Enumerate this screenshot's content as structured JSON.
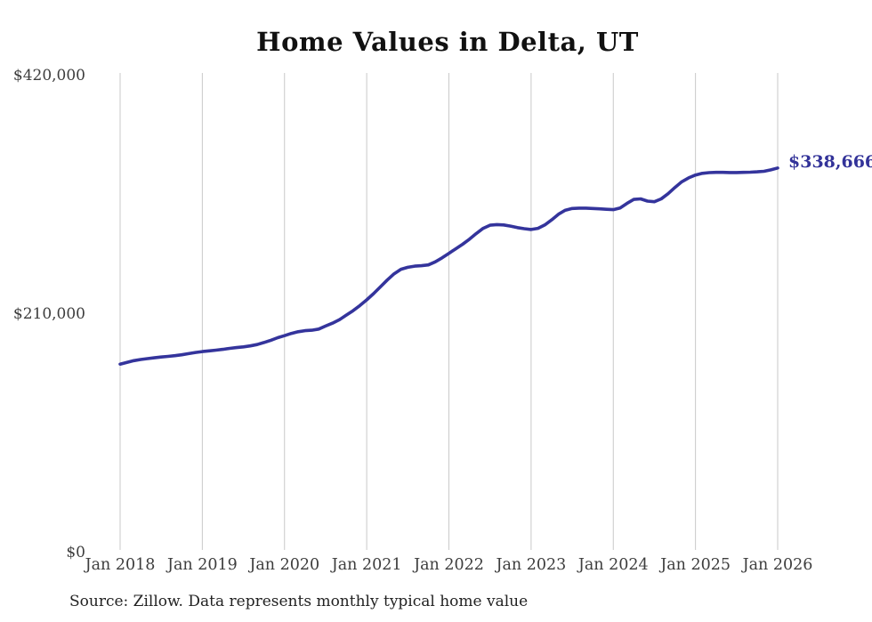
{
  "title": "Home Values in Delta, UT",
  "end_label": "$338,666",
  "source_note": "Source: Zillow. Data represents monthly typical home value",
  "colors": {
    "line": "#34349c",
    "grid": "#c9c9c9",
    "axis_text": "#3d3d3d",
    "title_text": "#111111",
    "end_label_text": "#333399",
    "background": "#ffffff"
  },
  "y_axis": {
    "tick_labels": [
      "$0",
      "$210,000",
      "$420,000"
    ],
    "tick_values": [
      0,
      210000,
      420000
    ]
  },
  "x_axis": {
    "tick_labels": [
      "Jan 2018",
      "Jan 2019",
      "Jan 2020",
      "Jan 2021",
      "Jan 2022",
      "Jan 2023",
      "Jan 2024",
      "Jan 2025",
      "Jan 2026"
    ]
  },
  "chart_data": {
    "type": "line",
    "title": "Home Values in Delta, UT",
    "xlabel": "",
    "ylabel": "",
    "x_start": "2018-01",
    "x_end": "2026-01",
    "frequency": "monthly",
    "ylim": [
      0,
      420000
    ],
    "y_tick_values": [
      0,
      210000,
      420000
    ],
    "y_tick_labels": [
      "$0",
      "$210,000",
      "$420,000"
    ],
    "x_tick_labels": [
      "Jan 2018",
      "Jan 2019",
      "Jan 2020",
      "Jan 2021",
      "Jan 2022",
      "Jan 2023",
      "Jan 2024",
      "Jan 2025",
      "Jan 2026"
    ],
    "grid": "vertical-only",
    "legend": "none",
    "end_annotation": "$338,666",
    "last_value": 338666,
    "series": [
      {
        "name": "Monthly typical home value",
        "color": "#34349c",
        "values": [
          166000,
          167500,
          169000,
          170000,
          170800,
          171500,
          172200,
          172800,
          173400,
          174200,
          175200,
          176200,
          177000,
          177600,
          178300,
          179000,
          179800,
          180500,
          181200,
          182000,
          183200,
          185000,
          187000,
          189200,
          191000,
          193000,
          194500,
          195400,
          195800,
          196800,
          199500,
          202000,
          205000,
          209000,
          213000,
          217500,
          222500,
          228000,
          234000,
          240000,
          245500,
          249500,
          251200,
          252200,
          252600,
          253300,
          256000,
          259500,
          263500,
          267500,
          271500,
          276000,
          281000,
          285500,
          288300,
          288800,
          288500,
          287500,
          286200,
          285200,
          284500,
          285500,
          288500,
          293000,
          298000,
          301500,
          303000,
          303300,
          303300,
          303000,
          302700,
          302300,
          302000,
          303500,
          307500,
          311000,
          311500,
          309500,
          309000,
          311500,
          316000,
          321500,
          326500,
          330000,
          332500,
          334000,
          334600,
          334800,
          334800,
          334700,
          334700,
          334800,
          335000,
          335300,
          335800,
          337000,
          338666
        ]
      }
    ]
  }
}
